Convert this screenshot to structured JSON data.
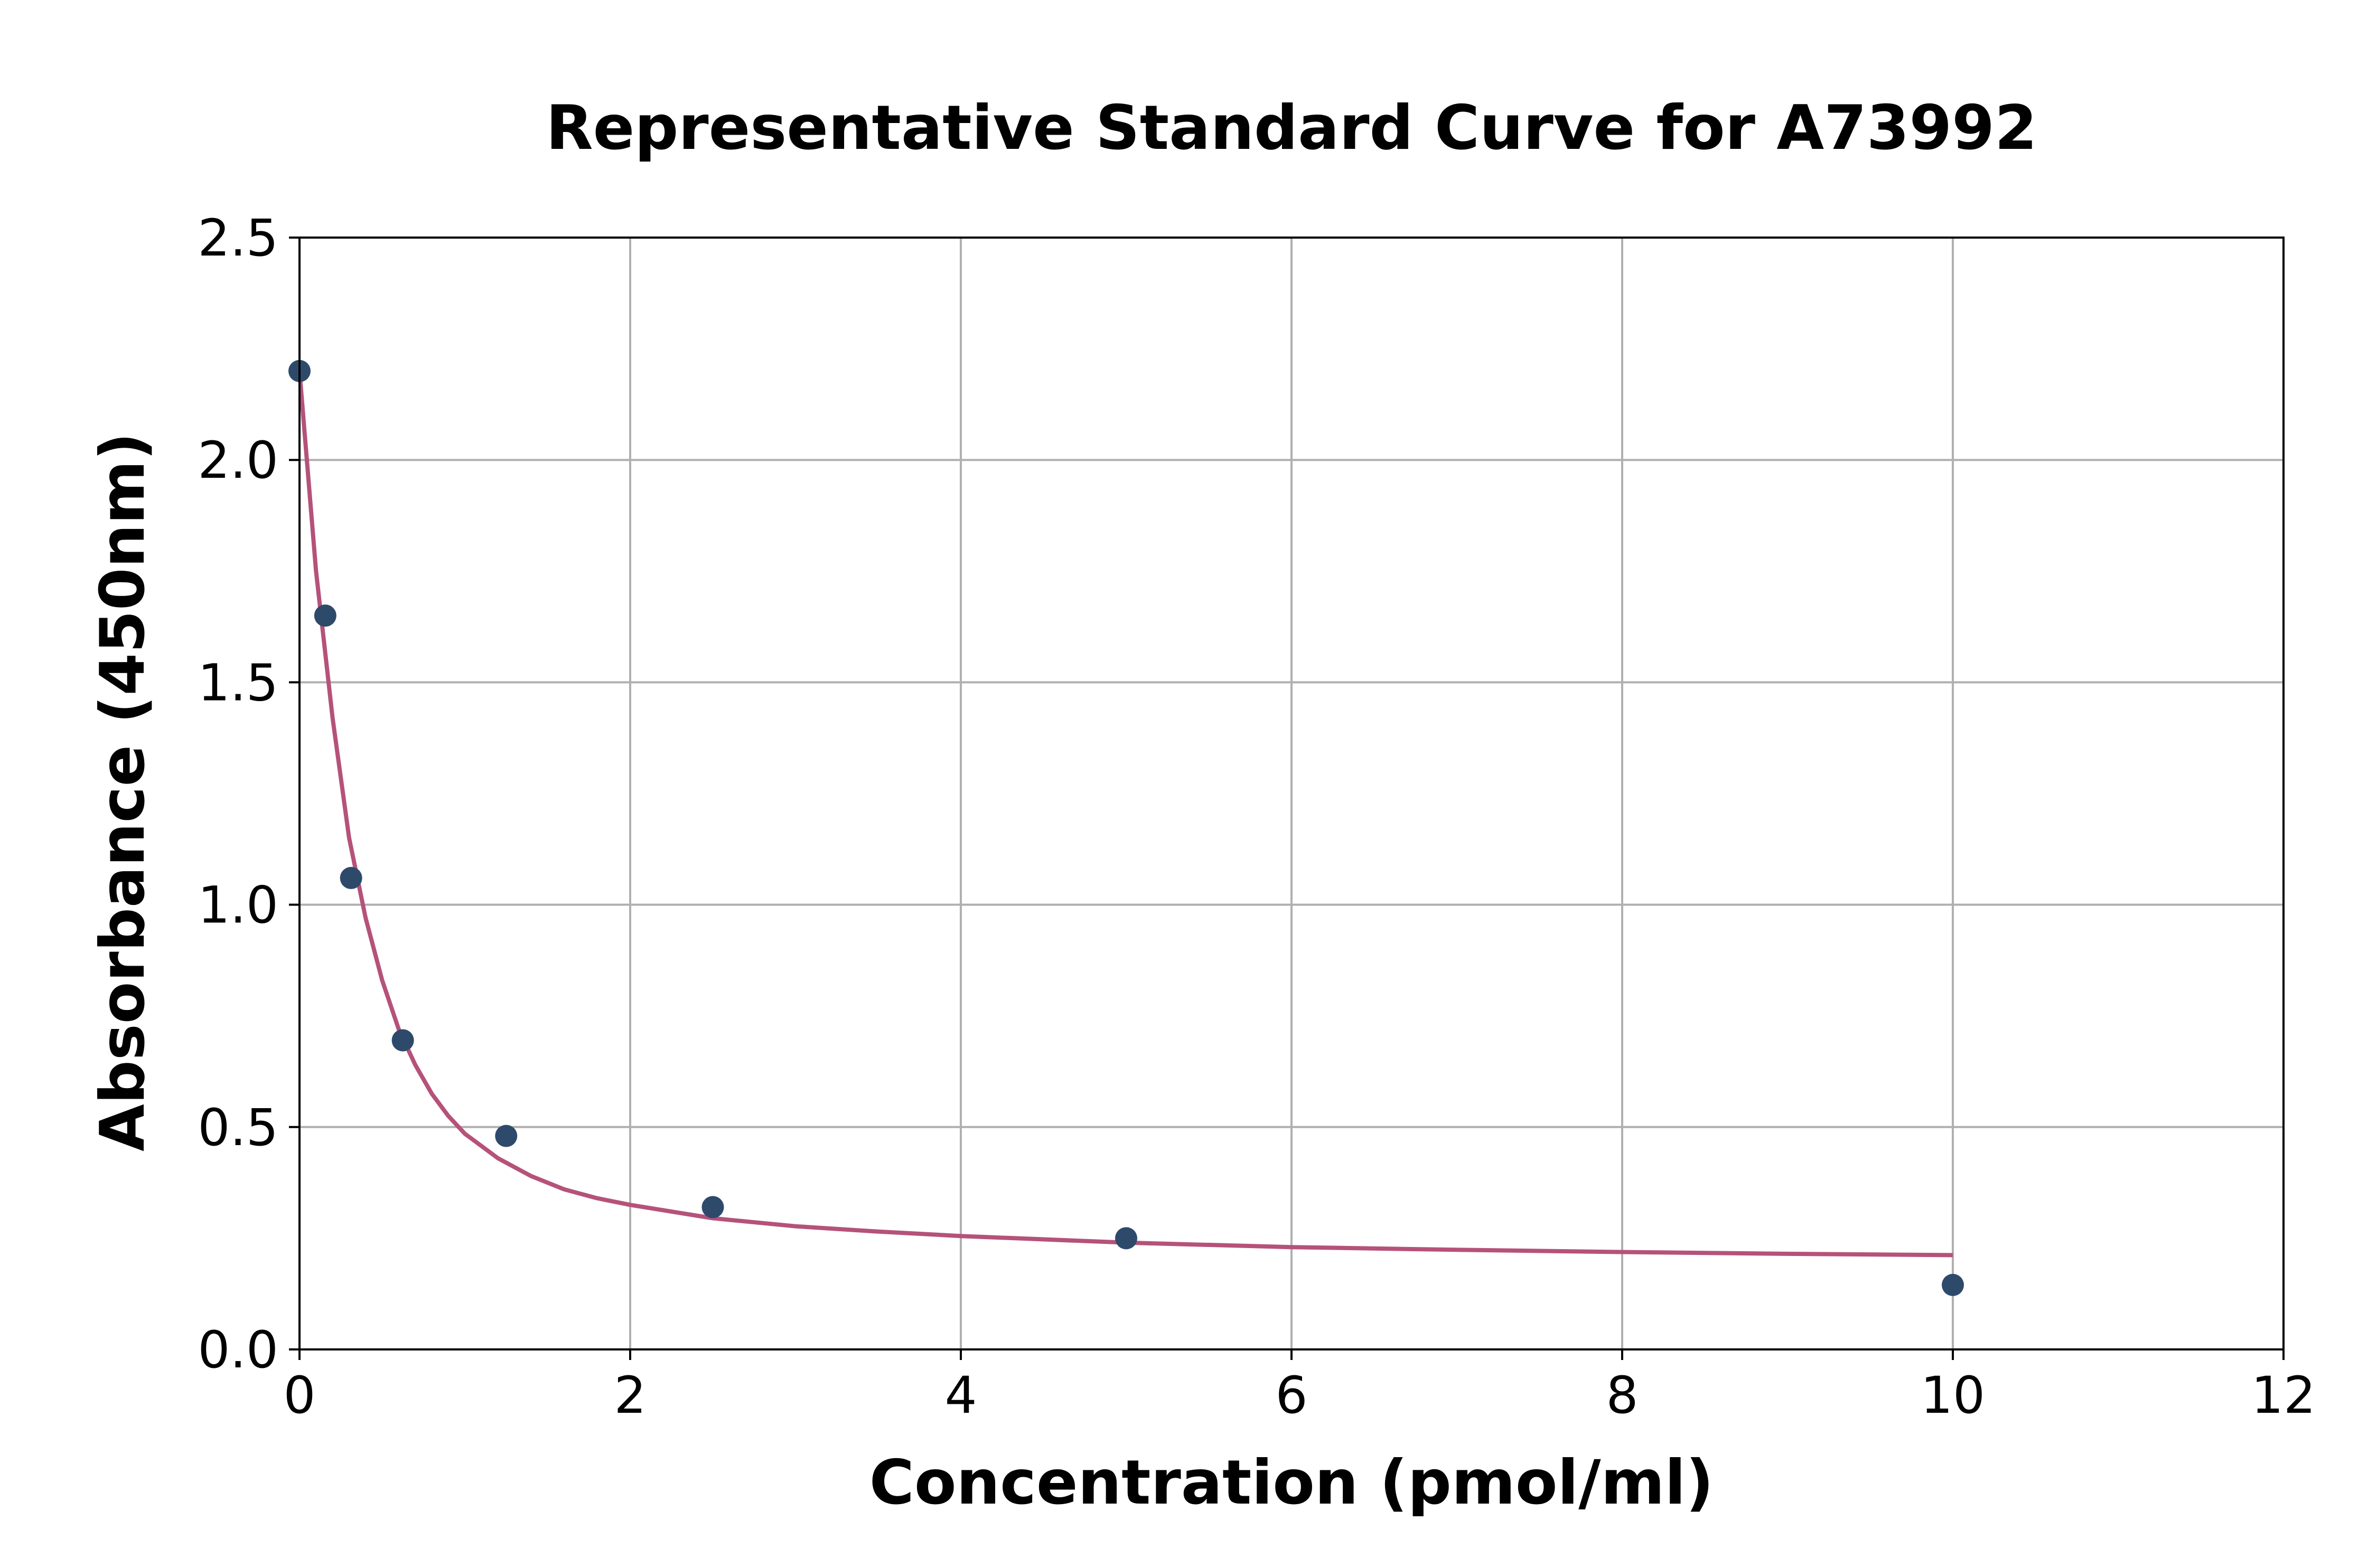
{
  "chart_data": {
    "type": "scatter",
    "title": "Representative Standard Curve for A73992",
    "xlabel": "Concentration (pmol/ml)",
    "ylabel": "Absorbance (450nm)",
    "xlim": [
      0,
      12
    ],
    "ylim": [
      0,
      2.5
    ],
    "xticks": [
      0,
      2,
      4,
      6,
      8,
      10,
      12
    ],
    "yticks": [
      0.0,
      0.5,
      1.0,
      1.5,
      2.0,
      2.5
    ],
    "xtick_labels": [
      "0",
      "2",
      "4",
      "6",
      "8",
      "10",
      "12"
    ],
    "ytick_labels": [
      "0.0",
      "0.5",
      "1.0",
      "1.5",
      "2.0",
      "2.5"
    ],
    "grid": true,
    "series": [
      {
        "kind": "points",
        "color": "#2e4a6b",
        "x": [
          0,
          0.156,
          0.312,
          0.625,
          1.25,
          2.5,
          5,
          10
        ],
        "y": [
          2.2,
          1.65,
          1.06,
          0.695,
          0.48,
          0.32,
          0.25,
          0.145
        ]
      },
      {
        "kind": "fit-curve",
        "color": "#b5527a",
        "x": [
          0,
          0.1,
          0.2,
          0.3,
          0.4,
          0.5,
          0.6,
          0.7,
          0.8,
          0.9,
          1.0,
          1.2,
          1.4,
          1.6,
          1.8,
          2.0,
          2.5,
          3.0,
          3.5,
          4.0,
          5.0,
          6.0,
          7.0,
          8.0,
          9.0,
          10.0
        ],
        "y": [
          2.2,
          1.75,
          1.42,
          1.15,
          0.97,
          0.83,
          0.72,
          0.64,
          0.575,
          0.525,
          0.485,
          0.43,
          0.39,
          0.36,
          0.34,
          0.325,
          0.295,
          0.277,
          0.265,
          0.255,
          0.24,
          0.23,
          0.224,
          0.219,
          0.215,
          0.212
        ]
      }
    ]
  }
}
